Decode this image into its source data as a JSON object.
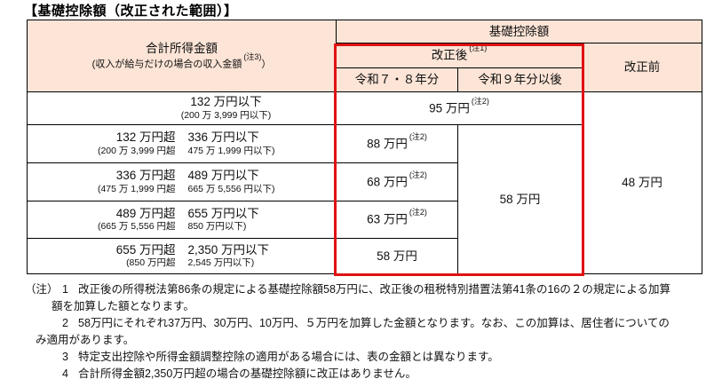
{
  "title": "【基礎控除額（改正された範囲）】",
  "colors": {
    "header_fill": "#fce4d6",
    "highlight_border": "#e01212",
    "grid_line": "#000000"
  },
  "table": {
    "header": {
      "income_title": "合計所得金額",
      "income_sub_pre": "(収入が給与だけの場合の収入金額",
      "income_sub_note": "(注3)",
      "income_sub_post": "）",
      "basic_deduction": "基礎控除額",
      "after_label": "改正後",
      "after_note": "(注1)",
      "col_r78": "令和７・８年分",
      "col_r9": "令和９年分以後",
      "before_label": "改正前"
    },
    "rows": [
      {
        "range_left": "",
        "range_right": "132 万円以下",
        "paren_left": "",
        "paren_right": "(200 万 3,999 円以下)",
        "amount": "95 万円",
        "amount_note": "(注2)"
      },
      {
        "range_left": "132 万円超",
        "range_right": "336 万円以下",
        "paren_left": "(200 万 3,999 円超",
        "paren_right": "475 万 1,999 円以下)",
        "amount": "88 万円",
        "amount_note": "(注2)"
      },
      {
        "range_left": "336 万円超",
        "range_right": "489 万円以下",
        "paren_left": "(475 万 1,999 円超",
        "paren_right": "665 万 5,556 円以下)",
        "amount": "68 万円",
        "amount_note": "(注2)"
      },
      {
        "range_left": "489 万円超",
        "range_right": "655 万円以下",
        "paren_left": "(665 万 5,556 円超",
        "paren_right": "850 万円以下)",
        "amount": "63 万円",
        "amount_note": "(注2)"
      },
      {
        "range_left": "655 万円超",
        "range_right": "2,350 万円以下",
        "paren_left": "(850 万円超",
        "paren_right": "2,545 万円以下)",
        "amount": "58 万円",
        "amount_note": ""
      }
    ],
    "merged_r9_amount": "58 万円",
    "before_amount": "48 万円"
  },
  "footnotes": {
    "label": "（注）",
    "items": [
      {
        "num": "1",
        "line1": "改正後の所得税法第86条の規定による基礎控除額58万円に、改正後の租税特別措置法第41条の16の２の規定による加算",
        "line2": "額を加算した額となります。"
      },
      {
        "num": "2",
        "line1": "58万円にそれぞれ37万円、30万円、10万円、５万円を加算した金額となります。なお、この加算は、居住者についての",
        "line2": "み適用があります。"
      },
      {
        "num": "3",
        "line1": "特定支出控除や所得金額調整控除の適用がある場合には、表の金額とは異なります。"
      },
      {
        "num": "4",
        "line1": "合計所得金額2,350万円超の場合の基礎控除額に改正はありません。"
      }
    ]
  }
}
